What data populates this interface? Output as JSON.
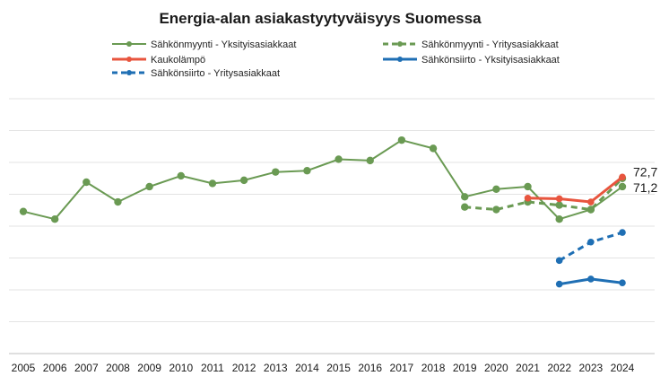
{
  "chart_data": {
    "type": "line",
    "title": "Energia-alan asiakastyytyväisyys Suomessa",
    "xlabel": "",
    "ylabel": "",
    "ylim": [
      45,
      85
    ],
    "grid": true,
    "legend_position": "top",
    "categories": [
      "2005",
      "2006",
      "2007",
      "2008",
      "2009",
      "2010",
      "2011",
      "2012",
      "2013",
      "2014",
      "2015",
      "2016",
      "2017",
      "2018",
      "2019",
      "2020",
      "2021",
      "2022",
      "2023",
      "2024"
    ],
    "series": [
      {
        "name": "Sähkönmyynti - Yksityisasiakkaat",
        "color": "#6a9a53",
        "dash": "solid",
        "values": [
          67.3,
          66.1,
          71.9,
          68.8,
          71.2,
          72.9,
          71.7,
          72.2,
          73.5,
          73.7,
          75.5,
          75.3,
          78.5,
          77.2,
          69.6,
          70.8,
          71.2,
          66.1,
          67.6,
          71.2
        ]
      },
      {
        "name": "Sähkönmyynti - Yritysasiakkaat",
        "color": "#6a9a53",
        "dash": "dashed",
        "values": [
          null,
          null,
          null,
          null,
          null,
          null,
          null,
          null,
          null,
          null,
          null,
          null,
          null,
          null,
          68.0,
          67.6,
          68.8,
          68.3,
          67.6,
          72.5
        ]
      },
      {
        "name": "Kaukolämpö",
        "color": "#e8553e",
        "dash": "solid",
        "values": [
          null,
          null,
          null,
          null,
          null,
          null,
          null,
          null,
          null,
          null,
          null,
          null,
          null,
          null,
          null,
          null,
          69.4,
          69.3,
          68.8,
          72.7
        ]
      },
      {
        "name": "Sähkönsiirto - Yksityisasiakkaat",
        "color": "#1f6fb4",
        "dash": "solid",
        "values": [
          null,
          null,
          null,
          null,
          null,
          null,
          null,
          null,
          null,
          null,
          null,
          null,
          null,
          null,
          null,
          null,
          null,
          55.9,
          56.7,
          56.1
        ]
      },
      {
        "name": "Sähkönsiirto - Yritysasiakkaat",
        "color": "#1f6fb4",
        "dash": "dashed",
        "values": [
          null,
          null,
          null,
          null,
          null,
          null,
          null,
          null,
          null,
          null,
          null,
          null,
          null,
          null,
          null,
          null,
          null,
          59.6,
          62.5,
          64.0
        ]
      }
    ],
    "annotations": [
      {
        "text": "72,7",
        "series": "Kaukolämpö",
        "category": "2024"
      },
      {
        "text": "71,2",
        "series": "Sähkönmyynti - Yksityisasiakkaat",
        "category": "2024"
      }
    ]
  }
}
